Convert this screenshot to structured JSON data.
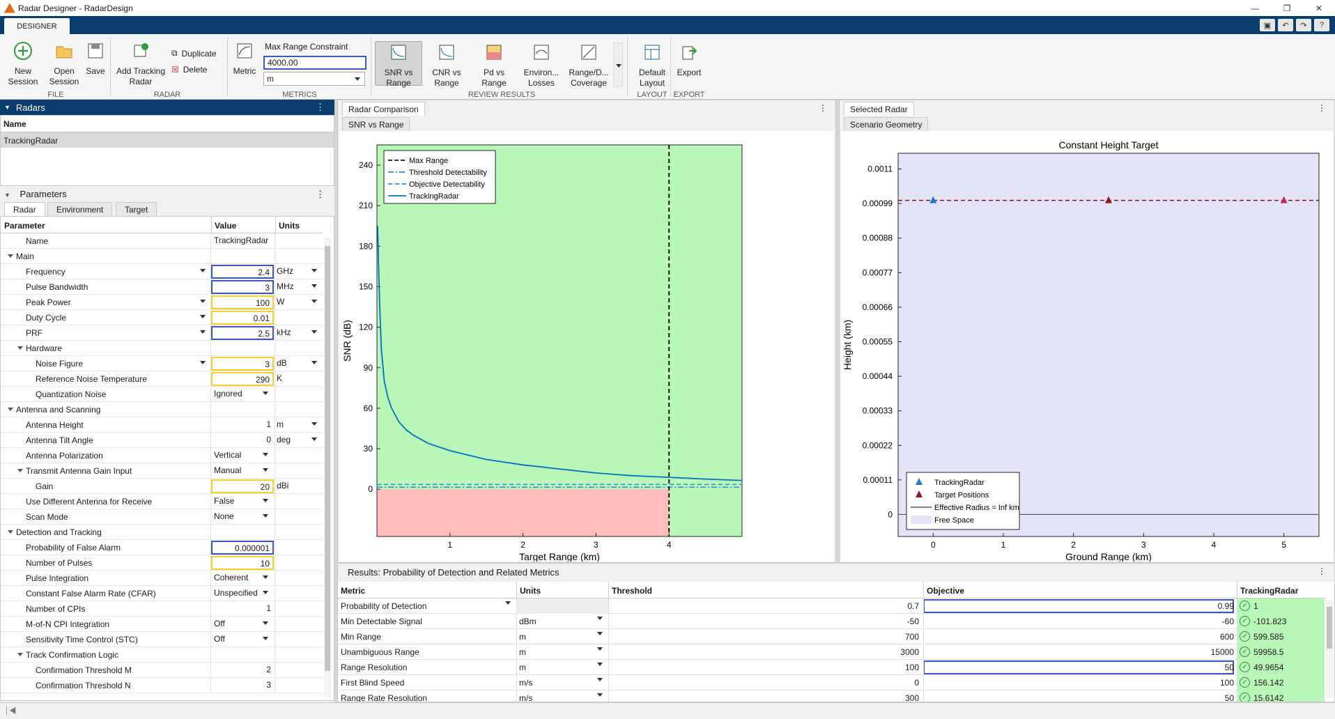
{
  "app": {
    "title": "Radar Designer - RadarDesign",
    "tab": "DESIGNER"
  },
  "colors": {
    "accent": "#0b3c6e",
    "green": "#b9f7b9",
    "red": "#ffbcbc",
    "freespace": "#e4e4f8",
    "select": "#3b57b8",
    "yellow": "#f2d230",
    "line": "#0072bd"
  },
  "ribbon": {
    "new_session": "New Session",
    "open_session": "Open Session",
    "save": "Save",
    "file_group": "FILE",
    "add_tracking_radar": "Add Tracking Radar",
    "duplicate": "Duplicate",
    "delete": "Delete",
    "radar_group": "RADAR",
    "metric": "Metric",
    "max_range_label": "Max Range Constraint",
    "max_range_value": "4000.00",
    "max_range_unit": "m",
    "metrics_group": "METRICS",
    "snr_vs_range": "SNR vs Range",
    "cnr_vs_range": "CNR vs Range",
    "pd_vs_range": "Pd vs Range",
    "environ_losses": "Environ... Losses",
    "range_coverage": "Range/D... Coverage",
    "review_group": "REVIEW RESULTS",
    "default_layout": "Default Layout",
    "layout_group": "LAYOUT",
    "export": "Export",
    "export_group": "EXPORT"
  },
  "radars": {
    "title": "Radars",
    "col_name": "Name",
    "items": [
      "TrackingRadar"
    ]
  },
  "parameters": {
    "title": "Parameters",
    "tabs": [
      "Radar",
      "Environment",
      "Target"
    ],
    "col_param": "Parameter",
    "col_value": "Value",
    "col_units": "Units",
    "rows": [
      {
        "name": "Name",
        "value": "TrackingRadar",
        "units": "",
        "indent": 1,
        "style": "txt"
      },
      {
        "name": "Main",
        "value": "",
        "units": "",
        "indent": 0,
        "group": true
      },
      {
        "name": "Frequency",
        "value": "2.4",
        "units": "GHz",
        "indent": 1,
        "style": "blu",
        "drop": true,
        "udrop": true
      },
      {
        "name": "Pulse Bandwidth",
        "value": "3",
        "units": "MHz",
        "indent": 1,
        "style": "blu",
        "udrop": true
      },
      {
        "name": "Peak Power",
        "value": "100",
        "units": "W",
        "indent": 1,
        "style": "ylw",
        "drop": true,
        "udrop": true
      },
      {
        "name": "Duty Cycle",
        "value": "0.01",
        "units": "",
        "indent": 1,
        "style": "ylw",
        "drop": true
      },
      {
        "name": "PRF",
        "value": "2.5",
        "units": "kHz",
        "indent": 1,
        "style": "blu",
        "drop": true,
        "udrop": true
      },
      {
        "name": "Hardware",
        "value": "",
        "units": "",
        "indent": 1,
        "group": true
      },
      {
        "name": "Noise Figure",
        "value": "3",
        "units": "dB",
        "indent": 2,
        "style": "ylw",
        "drop": true,
        "udrop": true
      },
      {
        "name": "Reference Noise Temperature",
        "value": "290",
        "units": "K",
        "indent": 2,
        "style": "ylw"
      },
      {
        "name": "Quantization Noise",
        "value": "Ignored",
        "units": "",
        "indent": 2,
        "style": "txt",
        "vdrop": true
      },
      {
        "name": "Antenna and Scanning",
        "value": "",
        "units": "",
        "indent": 0,
        "group": true
      },
      {
        "name": "Antenna Height",
        "value": "1",
        "units": "m",
        "indent": 1,
        "udrop": true
      },
      {
        "name": "Antenna Tilt Angle",
        "value": "0",
        "units": "deg",
        "indent": 1,
        "udrop": true
      },
      {
        "name": "Antenna Polarization",
        "value": "Vertical",
        "units": "",
        "indent": 1,
        "style": "txt",
        "vdrop": true
      },
      {
        "name": "Transmit Antenna Gain Input",
        "value": "Manual",
        "units": "",
        "indent": 1,
        "group": true,
        "style": "txt",
        "vdrop": true
      },
      {
        "name": "Gain",
        "value": "20",
        "units": "dBi",
        "indent": 2,
        "style": "ylw"
      },
      {
        "name": "Use Different Antenna for Receive",
        "value": "False",
        "units": "",
        "indent": 1,
        "style": "txt",
        "vdrop": true
      },
      {
        "name": "Scan Mode",
        "value": "None",
        "units": "",
        "indent": 1,
        "style": "txt",
        "vdrop": true
      },
      {
        "name": "Detection and Tracking",
        "value": "",
        "units": "",
        "indent": 0,
        "group": true
      },
      {
        "name": "Probability of False Alarm",
        "value": "0.000001",
        "units": "",
        "indent": 1,
        "style": "blu"
      },
      {
        "name": "Number of Pulses",
        "value": "10",
        "units": "",
        "indent": 1,
        "style": "ylw"
      },
      {
        "name": "Pulse Integration",
        "value": "Coherent",
        "units": "",
        "indent": 1,
        "style": "txt",
        "vdrop": true
      },
      {
        "name": "Constant False Alarm Rate (CFAR)",
        "value": "Unspecified",
        "units": "",
        "indent": 1,
        "style": "txt",
        "vdrop": true
      },
      {
        "name": "Number of CPIs",
        "value": "1",
        "units": "",
        "indent": 1
      },
      {
        "name": "M-of-N CPI Integration",
        "value": "Off",
        "units": "",
        "indent": 1,
        "style": "txt",
        "vdrop": true
      },
      {
        "name": "Sensitivity Time Control (STC)",
        "value": "Off",
        "units": "",
        "indent": 1,
        "style": "txt",
        "vdrop": true
      },
      {
        "name": "Track Confirmation Logic",
        "value": "",
        "units": "",
        "indent": 1,
        "group": true
      },
      {
        "name": "Confirmation Threshold M",
        "value": "2",
        "units": "",
        "indent": 2
      },
      {
        "name": "Confirmation Threshold N",
        "value": "3",
        "units": "",
        "indent": 2
      }
    ]
  },
  "comparison": {
    "doc_tab": "Radar Comparison",
    "plot_tab": "SNR vs Range"
  },
  "selected": {
    "doc_tab": "Selected Radar",
    "plot_tab": "Scenario Geometry"
  },
  "chart_data": [
    {
      "type": "line",
      "xlabel": "Target Range (km)",
      "ylabel": "SNR (dB)",
      "xlim": [
        0,
        5
      ],
      "ylim": [
        -35,
        255
      ],
      "xticks": [
        1,
        2,
        3,
        4
      ],
      "yticks": [
        0,
        30,
        60,
        90,
        120,
        150,
        180,
        210,
        240
      ],
      "legend": [
        "Max Range",
        "Threshold Detectability",
        "Objective Detectability",
        "TrackingRadar"
      ],
      "max_range_km": 4,
      "threshold_db": 1.5,
      "objective_db": 3.5,
      "series": [
        {
          "name": "TrackingRadar",
          "x": [
            0.01,
            0.02,
            0.04,
            0.06,
            0.1,
            0.15,
            0.2,
            0.3,
            0.4,
            0.5,
            0.7,
            1,
            1.5,
            2,
            2.5,
            3,
            3.5,
            4,
            4.5,
            5
          ],
          "values": [
            195,
            170,
            132,
            104,
            80,
            68,
            60,
            50,
            44,
            40,
            34,
            28.5,
            22,
            18,
            15,
            12,
            10,
            8.8,
            7.5,
            6.5
          ]
        }
      ],
      "legend_position": "top-left"
    },
    {
      "type": "scatter",
      "title": "Constant Height Target",
      "xlabel": "Ground Range (km)",
      "ylabel": "Height (km)",
      "xlim": [
        -0.5,
        5.5
      ],
      "ylim": [
        -7e-05,
        0.00115
      ],
      "xticks": [
        0,
        1,
        2,
        3,
        4,
        5
      ],
      "yticks": [
        "0",
        "0.00011",
        "0.00022",
        "0.00033",
        "0.00044",
        "0.00055",
        "0.00066",
        "0.00077",
        "0.00088",
        "0.00099",
        "0.0011"
      ],
      "tracking_radar": {
        "x": 0,
        "y": 0.001
      },
      "target_positions": {
        "x": [
          2.5,
          5
        ],
        "y": [
          0.001,
          0.001
        ]
      },
      "legend": [
        "TrackingRadar",
        "Target Positions",
        "Effective Radius = Inf km",
        "Free Space"
      ],
      "legend_position": "bottom-left"
    }
  ],
  "results": {
    "title": "Results: Probability of Detection and Related Metrics",
    "cols": [
      "Metric",
      "Units",
      "Threshold",
      "Objective",
      "TrackingRadar"
    ],
    "rows": [
      {
        "metric": "Probability of Detection",
        "units": "",
        "threshold": "0.7",
        "objective": "0.99",
        "value": "1"
      },
      {
        "metric": "Min Detectable Signal",
        "units": "dBm",
        "threshold": "-50",
        "objective": "-60",
        "value": "-101.823"
      },
      {
        "metric": "Min Range",
        "units": "m",
        "threshold": "700",
        "objective": "600",
        "value": "599.585"
      },
      {
        "metric": "Unambiguous Range",
        "units": "m",
        "threshold": "3000",
        "objective": "15000",
        "value": "59958.5"
      },
      {
        "metric": "Range Resolution",
        "units": "m",
        "threshold": "100",
        "objective": "50",
        "value": "49.9654"
      },
      {
        "metric": "First Blind Speed",
        "units": "m/s",
        "threshold": "0",
        "objective": "100",
        "value": "156.142"
      },
      {
        "metric": "Range Rate Resolution",
        "units": "m/s",
        "threshold": "300",
        "objective": "50",
        "value": "15.6142"
      }
    ]
  }
}
